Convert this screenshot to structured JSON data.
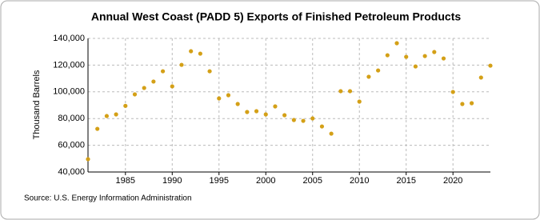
{
  "chart_data": {
    "type": "scatter",
    "title": "Annual West Coast (PADD 5) Exports of Finished Petroleum Products",
    "y_label": "Thousand Barrels",
    "source": "Source: U.S. Energy Information Administration",
    "x": [
      1981,
      1982,
      1983,
      1984,
      1985,
      1986,
      1987,
      1988,
      1989,
      1990,
      1991,
      1992,
      1993,
      1994,
      1995,
      1996,
      1997,
      1998,
      1999,
      2000,
      2001,
      2002,
      2003,
      2004,
      2005,
      2006,
      2007,
      2008,
      2009,
      2010,
      2011,
      2012,
      2013,
      2014,
      2015,
      2016,
      2017,
      2018,
      2019,
      2020,
      2021,
      2022,
      2023,
      2024
    ],
    "values": [
      49600,
      72300,
      81900,
      83100,
      89500,
      98100,
      102900,
      107700,
      115400,
      104100,
      120200,
      130400,
      128600,
      115400,
      95100,
      97500,
      90900,
      84900,
      85500,
      83100,
      89100,
      82500,
      78900,
      78300,
      80100,
      74100,
      68700,
      100500,
      100500,
      92700,
      111300,
      116000,
      127400,
      136400,
      126200,
      119000,
      126800,
      129800,
      125000,
      99900,
      90900,
      91500,
      110700,
      119600
    ],
    "color": "#d4a017",
    "xlim": [
      1981,
      2024
    ],
    "xticks": [
      1985,
      1990,
      1995,
      2000,
      2005,
      2010,
      2015,
      2020
    ],
    "ylim": [
      40000,
      140000
    ],
    "yticks": [
      {
        "value": 40000,
        "label": "40,000"
      },
      {
        "value": 60000,
        "label": "60,000"
      },
      {
        "value": 80000,
        "label": "80,000"
      },
      {
        "value": 100000,
        "label": "100,000"
      },
      {
        "value": 120000,
        "label": "120,000"
      },
      {
        "value": 140000,
        "label": "140,000"
      }
    ],
    "grid": true
  }
}
